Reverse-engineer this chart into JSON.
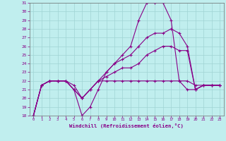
{
  "bg_color": "#c0eeee",
  "grid_color": "#a0d4d4",
  "line_color": "#880088",
  "xlabel": "Windchill (Refroidissement éolien,°C)",
  "xlim": [
    -0.5,
    23.5
  ],
  "ylim": [
    18,
    31
  ],
  "xticks": [
    0,
    1,
    2,
    3,
    4,
    5,
    6,
    7,
    8,
    9,
    10,
    11,
    12,
    13,
    14,
    15,
    16,
    17,
    18,
    19,
    20,
    21,
    22,
    23
  ],
  "yticks": [
    18,
    19,
    20,
    21,
    22,
    23,
    24,
    25,
    26,
    27,
    28,
    29,
    30,
    31
  ],
  "s1_x": [
    0,
    1,
    2,
    3,
    4,
    5,
    6,
    7,
    8,
    9,
    10,
    11,
    12,
    13,
    14,
    15,
    16,
    17,
    18,
    19,
    20,
    21,
    22,
    23
  ],
  "s1_y": [
    18,
    21.5,
    22,
    22,
    22,
    21,
    18,
    19,
    21,
    23,
    24,
    25,
    26,
    29,
    31,
    31,
    31,
    29,
    22,
    21,
    21,
    21.5,
    21.5,
    21.5
  ],
  "s2_x": [
    0,
    1,
    2,
    3,
    4,
    5,
    6,
    7,
    8,
    9,
    10,
    11,
    12,
    13,
    14,
    15,
    16,
    17,
    18,
    19,
    20,
    21,
    22,
    23
  ],
  "s2_y": [
    18,
    21.5,
    22,
    22,
    22,
    21.5,
    20,
    21,
    22,
    22,
    22,
    22,
    22,
    22,
    22,
    22,
    22,
    22,
    22,
    22,
    21.5,
    21.5,
    21.5,
    21.5
  ],
  "s3_x": [
    0,
    1,
    2,
    3,
    4,
    5,
    6,
    7,
    8,
    9,
    10,
    11,
    12,
    13,
    14,
    15,
    16,
    17,
    18,
    19,
    20,
    21,
    22,
    23
  ],
  "s3_y": [
    18,
    21.5,
    22,
    22,
    22,
    21,
    20,
    21,
    22,
    23,
    24,
    24.5,
    25,
    26,
    27,
    27.5,
    27.5,
    28,
    27.5,
    26,
    21,
    21.5,
    21.5,
    21.5
  ],
  "s4_x": [
    0,
    1,
    2,
    3,
    4,
    5,
    6,
    7,
    8,
    9,
    10,
    11,
    12,
    13,
    14,
    15,
    16,
    17,
    18,
    19,
    20,
    21,
    22,
    23
  ],
  "s4_y": [
    18,
    21.5,
    22,
    22,
    22,
    21,
    20,
    21,
    22,
    22.5,
    23,
    23.5,
    23.5,
    24,
    25,
    25.5,
    26,
    26,
    25.5,
    25.5,
    21,
    21.5,
    21.5,
    21.5
  ]
}
